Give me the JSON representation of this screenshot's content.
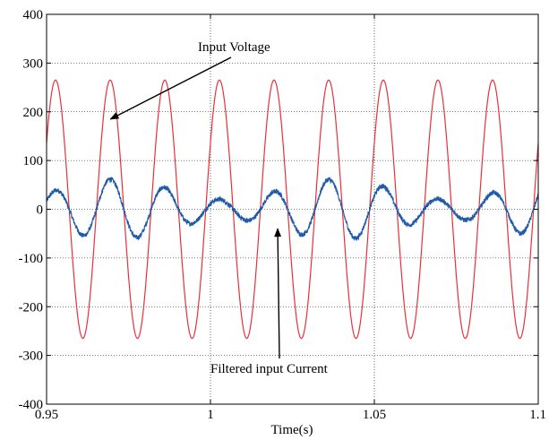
{
  "chart_data": {
    "type": "line",
    "title": "",
    "xlabel": "Time(s)",
    "ylabel": "",
    "xlim": [
      0.95,
      1.1
    ],
    "ylim": [
      -400,
      400
    ],
    "xticks": [
      "0.95",
      "1",
      "1.05",
      "1.1"
    ],
    "yticks": [
      "400",
      "300",
      "200",
      "100",
      "0",
      "-100",
      "-200",
      "-300",
      "-400"
    ],
    "grid": true,
    "series": [
      {
        "name": "Input Voltage",
        "color": "#e8303a",
        "shape": "sinusoid",
        "amplitude": 265,
        "frequency_hz": 60,
        "phase_rad": 0.54
      },
      {
        "name": "Filtered input Current",
        "color": "#1f5aa6",
        "shape": "sinusoid with beat envelope",
        "frequency_hz": 60,
        "phase_rad": 0.54,
        "amplitude_max": 62,
        "amplitude_min": 20,
        "envelope_period_s": 0.068,
        "amplitude_peak_time_s": 0.971,
        "noise": 5
      }
    ],
    "annotations": [
      {
        "text": "Input Voltage",
        "points_to": {
          "x": 0.9695,
          "y": 185
        }
      },
      {
        "text": "Filtered input Current",
        "points_to": {
          "x": 1.0205,
          "y": -40
        }
      }
    ]
  }
}
